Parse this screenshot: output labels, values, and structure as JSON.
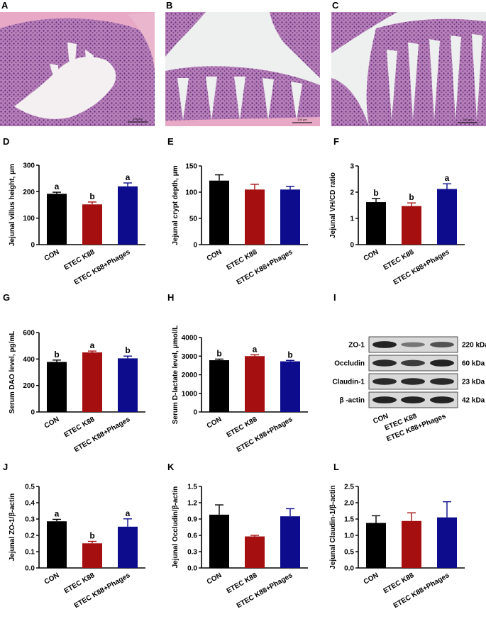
{
  "histology": [
    {
      "label": "A",
      "scale_text": "100 µm"
    },
    {
      "label": "B",
      "scale_text": "100 µm"
    },
    {
      "label": "C",
      "scale_text": "100 µm"
    }
  ],
  "colors": {
    "CON": "#000000",
    "ETEC K88": "#a50f0f",
    "ETEC K88+Phages": "#0c0c8c",
    "tissue_pink": "#e8a6c4",
    "tissue_purple": "#7a3f8e"
  },
  "chart_data": [
    {
      "panel": "D",
      "type": "bar",
      "categories": [
        "CON",
        "ETEC K88",
        "ETEC K88+Phages"
      ],
      "values": [
        192,
        152,
        220
      ],
      "errors": [
        6,
        9,
        13
      ],
      "sig": [
        "a",
        "b",
        "a"
      ],
      "ylabel": "Jejunal villus height, μm",
      "ylim": [
        0,
        300
      ],
      "yticks": [
        "0",
        "100",
        "200",
        "300"
      ]
    },
    {
      "panel": "E",
      "type": "bar",
      "categories": [
        "CON",
        "ETEC K88",
        "ETEC K88+Phages"
      ],
      "values": [
        122,
        105,
        105
      ],
      "errors": [
        11,
        10,
        6
      ],
      "sig": [
        "",
        "",
        ""
      ],
      "ylabel": "Jejunal crypt depth, μm",
      "ylim": [
        0,
        150
      ],
      "yticks": [
        "0",
        "50",
        "100",
        "150"
      ]
    },
    {
      "panel": "F",
      "type": "bar",
      "categories": [
        "CON",
        "ETEC K88",
        "ETEC K88+Phages"
      ],
      "values": [
        1.62,
        1.47,
        2.12
      ],
      "errors": [
        0.14,
        0.12,
        0.2
      ],
      "sig": [
        "b",
        "b",
        "a"
      ],
      "ylabel": "Jejunal VH/CD ratio",
      "ylim": [
        0,
        3
      ],
      "yticks": [
        "0",
        "1",
        "2",
        "3"
      ]
    },
    {
      "panel": "G",
      "type": "bar",
      "categories": [
        "CON",
        "ETEC K88",
        "ETEC K88+Phages"
      ],
      "values": [
        378,
        450,
        405
      ],
      "errors": [
        14,
        10,
        17
      ],
      "sig": [
        "b",
        "a",
        "b"
      ],
      "ylabel": "Serum DAO level, pg/mL",
      "ylim": [
        0,
        600
      ],
      "yticks": [
        "0",
        "200",
        "400",
        "600"
      ]
    },
    {
      "panel": "H",
      "type": "bar",
      "categories": [
        "CON",
        "ETEC K88",
        "ETEC K88+Phages"
      ],
      "values": [
        2780,
        3000,
        2720
      ],
      "errors": [
        60,
        70,
        50
      ],
      "sig": [
        "b",
        "a",
        "b"
      ],
      "ylabel": "Serum D-lactate level, μmol/L",
      "ylim": [
        0,
        4000
      ],
      "yticks": [
        "0",
        "1000",
        "2000",
        "3000",
        "4000"
      ]
    },
    {
      "panel": "J",
      "type": "bar",
      "categories": [
        "CON",
        "ETEC K88",
        "ETEC K88+Phages"
      ],
      "values": [
        0.286,
        0.151,
        0.253
      ],
      "errors": [
        0.012,
        0.012,
        0.048
      ],
      "sig": [
        "a",
        "b",
        "a"
      ],
      "ylabel": "Jejunal ZO-1/β-actin",
      "ylim": [
        0,
        0.5
      ],
      "yticks": [
        "0.0",
        "0.1",
        "0.2",
        "0.3",
        "0.4",
        "0.5"
      ]
    },
    {
      "panel": "K",
      "type": "bar",
      "categories": [
        "CON",
        "ETEC K88",
        "ETEC K88+Phages"
      ],
      "values": [
        0.98,
        0.58,
        0.95
      ],
      "errors": [
        0.18,
        0.02,
        0.14
      ],
      "sig": [
        "",
        "",
        ""
      ],
      "ylabel": "Jejunal Occludin/β-actin",
      "ylim": [
        0,
        1.5
      ],
      "yticks": [
        "0.0",
        "0.3",
        "0.6",
        "0.9",
        "1.2",
        "1.5"
      ]
    },
    {
      "panel": "L",
      "type": "bar",
      "categories": [
        "CON",
        "ETEC K88",
        "ETEC K88+Phages"
      ],
      "values": [
        1.38,
        1.44,
        1.55
      ],
      "errors": [
        0.22,
        0.25,
        0.48
      ],
      "sig": [
        "",
        "",
        ""
      ],
      "ylabel": "Jejunal Claudin-1/β-actin",
      "ylim": [
        0,
        2.5
      ],
      "yticks": [
        "0.0",
        "0.5",
        "1.0",
        "1.5",
        "2.0",
        "2.5"
      ]
    }
  ],
  "western_blot": {
    "panel": "I",
    "bands": [
      {
        "protein": "ZO-1",
        "size": "220 kDa",
        "intensity": [
          0.95,
          0.35,
          0.6
        ]
      },
      {
        "protein": "Occludin",
        "size": "60 kDa",
        "intensity": [
          0.9,
          0.75,
          0.95
        ]
      },
      {
        "protein": "Claudin-1",
        "size": "23 kDa",
        "intensity": [
          0.9,
          0.9,
          0.9
        ]
      },
      {
        "protein": "β -actin",
        "size": "42 kDa",
        "intensity": [
          0.95,
          0.95,
          0.95
        ]
      }
    ],
    "lanes": [
      "CON",
      "ETEC K88",
      "ETEC K88+Phages"
    ]
  }
}
